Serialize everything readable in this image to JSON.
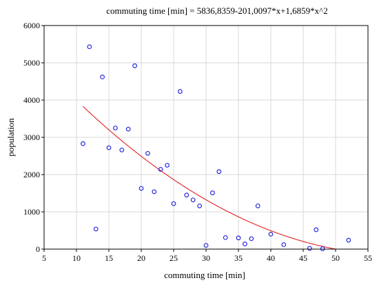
{
  "chart_data": {
    "type": "scatter",
    "title": "commuting time [min] = 5836,8359-201,0097*x+1,6859*x^2",
    "xlabel": "commuting time [min]",
    "ylabel": "population",
    "xlim": [
      5,
      55
    ],
    "ylim": [
      0,
      6000
    ],
    "x_ticks": [
      5,
      10,
      15,
      20,
      25,
      30,
      35,
      40,
      45,
      50,
      55
    ],
    "y_ticks": [
      0,
      1000,
      2000,
      3000,
      4000,
      5000,
      6000
    ],
    "grid": true,
    "points": [
      {
        "x": 11,
        "y": 2830
      },
      {
        "x": 12,
        "y": 5430
      },
      {
        "x": 13,
        "y": 540
      },
      {
        "x": 14,
        "y": 4620
      },
      {
        "x": 15,
        "y": 2720
      },
      {
        "x": 16,
        "y": 3250
      },
      {
        "x": 17,
        "y": 2660
      },
      {
        "x": 18,
        "y": 3220
      },
      {
        "x": 19,
        "y": 4920
      },
      {
        "x": 20,
        "y": 1630
      },
      {
        "x": 21,
        "y": 2570
      },
      {
        "x": 22,
        "y": 1540
      },
      {
        "x": 23,
        "y": 2140
      },
      {
        "x": 24,
        "y": 2250
      },
      {
        "x": 25,
        "y": 1220
      },
      {
        "x": 26,
        "y": 4230
      },
      {
        "x": 27,
        "y": 1450
      },
      {
        "x": 28,
        "y": 1320
      },
      {
        "x": 29,
        "y": 1160
      },
      {
        "x": 30,
        "y": 100
      },
      {
        "x": 31,
        "y": 1510
      },
      {
        "x": 32,
        "y": 2080
      },
      {
        "x": 33,
        "y": 310
      },
      {
        "x": 35,
        "y": 300
      },
      {
        "x": 36,
        "y": 140
      },
      {
        "x": 37,
        "y": 280
      },
      {
        "x": 38,
        "y": 1160
      },
      {
        "x": 40,
        "y": 400
      },
      {
        "x": 42,
        "y": 120
      },
      {
        "x": 46,
        "y": 20
      },
      {
        "x": 47,
        "y": 520
      },
      {
        "x": 48,
        "y": 10
      },
      {
        "x": 52,
        "y": 240
      }
    ],
    "fit": {
      "type": "quadratic",
      "coefficients": [
        5836.8359,
        -201.0097,
        1.6859
      ],
      "x_range": [
        11,
        52
      ],
      "color": "#e02020"
    },
    "marker_color": "#2a2ae0"
  }
}
